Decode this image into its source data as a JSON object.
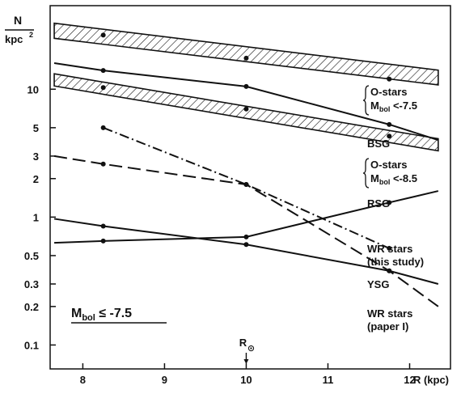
{
  "chart_data": {
    "type": "line",
    "y_scale": "log",
    "xlim": [
      7.6,
      12.5
    ],
    "ylim": [
      0.065,
      45
    ],
    "x_ticks": [
      "8",
      "9",
      "10",
      "11",
      "12"
    ],
    "y_ticks": [
      "0.1",
      "0.2",
      "0.3",
      "0.5",
      "1",
      "2",
      "3",
      "5",
      "10"
    ],
    "xlabel": "R (kpc)",
    "ylabel_top": "N",
    "ylabel_bottom": "kpc",
    "ylabel_sup": "2",
    "sun_label": "R",
    "sun_symbol": "⊙",
    "sun_x": 10,
    "inset_label": "M",
    "inset_sub": "bol",
    "inset_rest": " ≤ -7.5",
    "grid": false,
    "bands": [
      {
        "name": "O-stars Mbol < -7.5",
        "x": [
          7.65,
          12.35
        ],
        "y_low": [
          25.0,
          10.8
        ],
        "y_high": [
          32.8,
          14.1
        ],
        "points": [
          {
            "x": 8.25,
            "y": 26.5
          },
          {
            "x": 10.0,
            "y": 17.5
          },
          {
            "x": 11.75,
            "y": 12.0
          }
        ]
      },
      {
        "name": "O-stars Mbol < -8.5",
        "x": [
          7.65,
          12.35
        ],
        "y_low": [
          10.6,
          3.3
        ],
        "y_high": [
          13.2,
          4.1
        ],
        "points": [
          {
            "x": 8.25,
            "y": 10.3
          },
          {
            "x": 10.0,
            "y": 7.0
          },
          {
            "x": 11.75,
            "y": 4.3
          }
        ]
      }
    ],
    "series": [
      {
        "name": "BSG",
        "style": "solid",
        "x": [
          7.65,
          8.25,
          10.0,
          11.75,
          12.35
        ],
        "y": [
          16.0,
          14.0,
          10.5,
          5.3,
          4.0
        ],
        "markers": [
          8.25,
          10.0,
          11.75
        ]
      },
      {
        "name": "RSG",
        "style": "solid",
        "x": [
          7.65,
          8.25,
          10.0,
          11.75,
          12.35
        ],
        "y": [
          0.63,
          0.65,
          0.7,
          1.3,
          1.6
        ],
        "markers": [
          8.25,
          10.0,
          11.75
        ]
      },
      {
        "name": "WR stars (this study)",
        "style": "dashdot",
        "x": [
          8.25,
          10.0,
          11.75
        ],
        "y": [
          5.0,
          1.8,
          0.57
        ],
        "markers": [
          8.25,
          10.0,
          11.75
        ]
      },
      {
        "name": "YSG",
        "style": "solid",
        "x": [
          7.65,
          8.25,
          10.0,
          11.75,
          12.35
        ],
        "y": [
          0.97,
          0.85,
          0.61,
          0.38,
          0.3
        ],
        "markers": [
          8.25,
          10.0,
          11.75
        ]
      },
      {
        "name": "WR stars (paper I)",
        "style": "longdash",
        "x": [
          7.65,
          8.25,
          10.0,
          11.75,
          12.35
        ],
        "y": [
          3.0,
          2.6,
          1.8,
          0.38,
          0.2
        ],
        "markers": [
          8.25,
          10.0,
          11.75
        ]
      }
    ],
    "right_labels": [
      {
        "lines": [
          "O-stars",
          "M",
          "bol",
          " <-7.5"
        ],
        "brace": true
      },
      {
        "lines": [
          "BSG"
        ]
      },
      {
        "lines": [
          "O-stars",
          "M",
          "bol",
          " <-8.5"
        ],
        "brace": true
      },
      {
        "lines": [
          "RSG"
        ]
      },
      {
        "lines": [
          "WR stars",
          "(this study)"
        ]
      },
      {
        "lines": [
          "YSG"
        ]
      },
      {
        "lines": [
          "WR stars",
          "(paper I)"
        ]
      }
    ]
  }
}
